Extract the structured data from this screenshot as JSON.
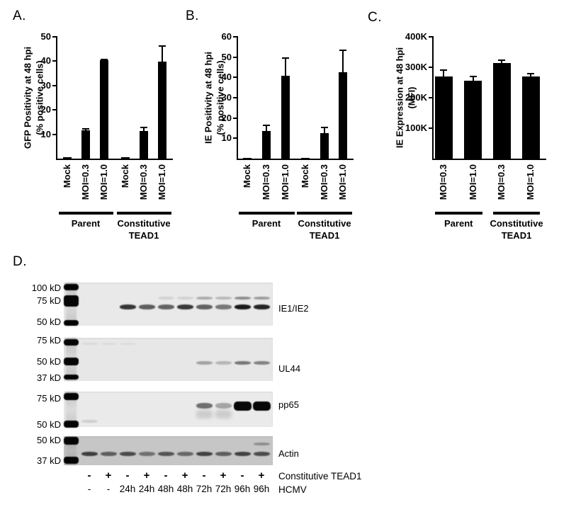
{
  "panels": {
    "a": "A.",
    "b": "B.",
    "c": "C.",
    "d": "D."
  },
  "chart_data": [
    {
      "id": "A",
      "type": "bar",
      "title": "",
      "ylabel": [
        "GFP Positivity at 48 hpi",
        "(% positive cells)"
      ],
      "ylim": [
        0,
        50
      ],
      "yticks": [
        {
          "value": 10,
          "label": "10"
        },
        {
          "value": 20,
          "label": "20"
        },
        {
          "value": 30,
          "label": "30"
        },
        {
          "value": 40,
          "label": "40"
        },
        {
          "value": 50,
          "label": "50"
        }
      ],
      "categories": [
        "Mock",
        "MOI=0.3",
        "MOI=1.0",
        "Mock",
        "MOI=0.3",
        "MOI=1.0"
      ],
      "values": [
        0.5,
        11.5,
        40.3,
        0.5,
        11.2,
        39.9
      ],
      "errors": [
        0,
        0.7,
        0.4,
        0,
        1.7,
        6.3
      ],
      "groups": [
        {
          "label": [
            "Parent"
          ],
          "from": 0,
          "to": 2
        },
        {
          "label": [
            "Constitutive",
            "TEAD1"
          ],
          "from": 3,
          "to": 5
        }
      ],
      "bar_color": "#000000",
      "grid": false
    },
    {
      "id": "B",
      "type": "bar",
      "title": "",
      "ylabel": [
        "IE Positivity at 48 hpi",
        "(% positive cells)"
      ],
      "ylim": [
        0,
        60
      ],
      "yticks": [
        {
          "value": 10,
          "label": "10"
        },
        {
          "value": 20,
          "label": "20"
        },
        {
          "value": 30,
          "label": "30"
        },
        {
          "value": 40,
          "label": "40"
        },
        {
          "value": 50,
          "label": "50"
        },
        {
          "value": 60,
          "label": "60"
        }
      ],
      "categories": [
        "Mock",
        "MOI=0.3",
        "MOI=1.0",
        "Mock",
        "MOI=0.3",
        "MOI=1.0"
      ],
      "values": [
        0.5,
        13.6,
        40.8,
        0.5,
        12.5,
        42.6
      ],
      "errors": [
        0,
        2.8,
        8.7,
        0,
        2.8,
        10.7
      ],
      "groups": [
        {
          "label": [
            "Parent"
          ],
          "from": 0,
          "to": 2
        },
        {
          "label": [
            "Constitutive",
            "TEAD1"
          ],
          "from": 3,
          "to": 5
        }
      ],
      "bar_color": "#000000",
      "grid": false
    },
    {
      "id": "C",
      "type": "bar",
      "title": "",
      "ylabel": [
        "IE Expression at 48 hpi",
        "(MFI)"
      ],
      "ylim": [
        0,
        400
      ],
      "unit": "K",
      "yticks": [
        {
          "value": 100,
          "label": "100K"
        },
        {
          "value": 200,
          "label": "200K"
        },
        {
          "value": 300,
          "label": "300K"
        },
        {
          "value": 400,
          "label": "400K"
        }
      ],
      "categories": [
        "MOI=0.3",
        "MOI=1.0",
        "MOI=0.3",
        "MOI=1.0"
      ],
      "values": [
        270,
        256,
        313,
        270
      ],
      "errors": [
        21,
        14,
        10,
        9
      ],
      "groups": [
        {
          "label": [
            "Parent"
          ],
          "from": 0,
          "to": 1
        },
        {
          "label": [
            "Constitutive",
            "TEAD1"
          ],
          "from": 2,
          "to": 3
        }
      ],
      "bar_color": "#000000",
      "grid": false
    }
  ],
  "western_panel": {
    "lane_count": 10,
    "blots": [
      {
        "name": "IE1/IE2",
        "markers": [
          "100 kD",
          "75 kD",
          "50 kD"
        ],
        "bands": [
          {
            "lane": 3,
            "row": "main",
            "intensity": 0.8
          },
          {
            "lane": 4,
            "row": "main",
            "intensity": 0.62
          },
          {
            "lane": 5,
            "row": "main",
            "intensity": 0.6
          },
          {
            "lane": 6,
            "row": "main",
            "intensity": 0.78
          },
          {
            "lane": 7,
            "row": "main",
            "intensity": 0.6
          },
          {
            "lane": 8,
            "row": "main",
            "intensity": 0.5
          },
          {
            "lane": 9,
            "row": "main",
            "intensity": 0.92
          },
          {
            "lane": 10,
            "row": "main",
            "intensity": 0.88
          },
          {
            "lane": 5,
            "row": "upper",
            "intensity": 0.1
          },
          {
            "lane": 6,
            "row": "upper",
            "intensity": 0.1
          },
          {
            "lane": 7,
            "row": "upper",
            "intensity": 0.28
          },
          {
            "lane": 8,
            "row": "upper",
            "intensity": 0.22
          },
          {
            "lane": 9,
            "row": "upper",
            "intensity": 0.42
          },
          {
            "lane": 10,
            "row": "upper",
            "intensity": 0.35
          }
        ]
      },
      {
        "name": "UL44",
        "markers": [
          "75 kD",
          "50 kD",
          "37 kD"
        ],
        "bands": [
          {
            "lane": 1,
            "row": "upper",
            "intensity": 0.06
          },
          {
            "lane": 2,
            "row": "upper",
            "intensity": 0.05
          },
          {
            "lane": 3,
            "row": "upper",
            "intensity": 0.05
          },
          {
            "lane": 7,
            "row": "main",
            "intensity": 0.3
          },
          {
            "lane": 8,
            "row": "main",
            "intensity": 0.22
          },
          {
            "lane": 9,
            "row": "main",
            "intensity": 0.5
          },
          {
            "lane": 10,
            "row": "main",
            "intensity": 0.45
          }
        ]
      },
      {
        "name": "pp65",
        "markers": [
          "75 kD",
          "50 kD"
        ],
        "bands": [
          {
            "lane": 1,
            "row": "dot",
            "intensity": 0.12
          },
          {
            "lane": 7,
            "row": "main",
            "intensity": 0.55
          },
          {
            "lane": 7,
            "row": "smear",
            "intensity": 0.13
          },
          {
            "lane": 8,
            "row": "main",
            "intensity": 0.3
          },
          {
            "lane": 8,
            "row": "smear",
            "intensity": 0.13
          },
          {
            "lane": 9,
            "row": "main",
            "intensity": 1,
            "thick": true
          },
          {
            "lane": 10,
            "row": "main",
            "intensity": 1,
            "thick": true
          }
        ]
      },
      {
        "name": "Actin",
        "markers": [
          "50 kD",
          "37 kD"
        ],
        "bands": [
          {
            "lane": 1,
            "row": "main",
            "intensity": 0.72
          },
          {
            "lane": 2,
            "row": "main",
            "intensity": 0.55
          },
          {
            "lane": 3,
            "row": "main",
            "intensity": 0.65
          },
          {
            "lane": 4,
            "row": "main",
            "intensity": 0.45
          },
          {
            "lane": 5,
            "row": "main",
            "intensity": 0.6
          },
          {
            "lane": 6,
            "row": "main",
            "intensity": 0.5
          },
          {
            "lane": 7,
            "row": "main",
            "intensity": 0.7
          },
          {
            "lane": 8,
            "row": "main",
            "intensity": 0.55
          },
          {
            "lane": 9,
            "row": "main",
            "intensity": 0.7
          },
          {
            "lane": 10,
            "row": "main",
            "intensity": 0.65
          },
          {
            "lane": 10,
            "row": "upper",
            "intensity": 0.3
          }
        ]
      }
    ],
    "condition_rows": [
      {
        "values": [
          "-",
          "+",
          "-",
          "+",
          "-",
          "+",
          "-",
          "+",
          "-",
          "+"
        ],
        "label": "Constitutive TEAD1"
      },
      {
        "values": [
          "-",
          "-",
          "24h",
          "24h",
          "48h",
          "48h",
          "72h",
          "72h",
          "96h",
          "96h"
        ],
        "label": "HCMV"
      }
    ]
  }
}
